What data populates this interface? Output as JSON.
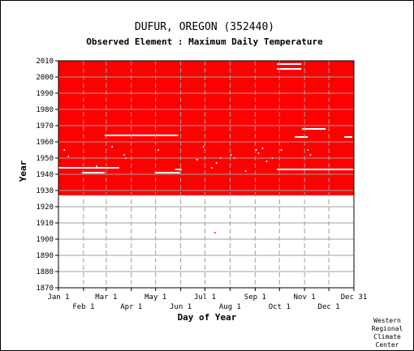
{
  "chart_data": {
    "type": "scatter",
    "title": "DUFUR, OREGON   (352440)",
    "subtitle": "Observed Element : Maximum Daily Temperature",
    "xlabel": "Day of Year",
    "ylabel": "Year",
    "ylim": [
      1870,
      2010
    ],
    "yticks": [
      2010,
      2000,
      1990,
      1980,
      1970,
      1960,
      1950,
      1940,
      1930,
      1920,
      1910,
      1900,
      1890,
      1880,
      1870
    ],
    "xlim": [
      1,
      366
    ],
    "xticks_top": [
      {
        "label": "Jan 1",
        "day": 1
      },
      {
        "label": "Mar 1",
        "day": 60
      },
      {
        "label": "May 1",
        "day": 121
      },
      {
        "label": "Jul 1",
        "day": 182
      },
      {
        "label": "Sep 1",
        "day": 244
      },
      {
        "label": "Nov 1",
        "day": 305
      },
      {
        "label": "Dec 31",
        "day": 366
      }
    ],
    "xticks_bottom": [
      {
        "label": "Feb 1",
        "day": 32
      },
      {
        "label": "Apr 1",
        "day": 91
      },
      {
        "label": "Jun 1",
        "day": 152
      },
      {
        "label": "Aug 1",
        "day": 213
      },
      {
        "label": "Oct 1",
        "day": 274
      },
      {
        "label": "Dec 1",
        "day": 335
      }
    ],
    "grid": true,
    "data_fill_color": "#ff0000",
    "gap_color": "#ffffff",
    "observed_block": {
      "day_start": 1,
      "day_end": 366,
      "year_start": 1927,
      "year_end": 2010
    },
    "missing_segments": [
      {
        "year": 1944,
        "day_start": 1,
        "day_end": 76
      },
      {
        "year": 1941,
        "day_start": 30,
        "day_end": 58
      },
      {
        "year": 1964,
        "day_start": 58,
        "day_end": 149
      },
      {
        "year": 1941,
        "day_start": 120,
        "day_end": 151
      },
      {
        "year": 1943,
        "day_start": 145,
        "day_end": 153
      },
      {
        "year": 2008,
        "day_start": 271,
        "day_end": 301
      },
      {
        "year": 2005,
        "day_start": 271,
        "day_end": 301
      },
      {
        "year": 1963,
        "day_start": 293,
        "day_end": 309
      },
      {
        "year": 1968,
        "day_start": 302,
        "day_end": 331
      },
      {
        "year": 1963,
        "day_start": 354,
        "day_end": 364
      },
      {
        "year": 1943,
        "day_start": 271,
        "day_end": 366
      }
    ],
    "missing_points": [
      {
        "day": 8,
        "year": 1955
      },
      {
        "day": 13,
        "year": 1951
      },
      {
        "day": 48,
        "year": 1945
      },
      {
        "day": 67,
        "year": 1957
      },
      {
        "day": 82,
        "year": 1952
      },
      {
        "day": 84,
        "year": 1950
      },
      {
        "day": 124,
        "year": 1955
      },
      {
        "day": 172,
        "year": 1949
      },
      {
        "day": 180,
        "year": 1957
      },
      {
        "day": 190,
        "year": 1944
      },
      {
        "day": 196,
        "year": 1947
      },
      {
        "day": 201,
        "year": 1950
      },
      {
        "day": 214,
        "year": 1952
      },
      {
        "day": 218,
        "year": 1950
      },
      {
        "day": 232,
        "year": 1942
      },
      {
        "day": 245,
        "year": 1955
      },
      {
        "day": 248,
        "year": 1953
      },
      {
        "day": 253,
        "year": 1956
      },
      {
        "day": 258,
        "year": 1948
      },
      {
        "day": 265,
        "year": 1950
      },
      {
        "day": 276,
        "year": 1955
      },
      {
        "day": 309,
        "year": 1955
      },
      {
        "day": 312,
        "year": 1952
      }
    ],
    "isolated_observations": [
      {
        "day": 194,
        "year": 1904
      }
    ]
  },
  "credit": [
    "Western",
    "Regional",
    "Climate",
    "Center"
  ]
}
